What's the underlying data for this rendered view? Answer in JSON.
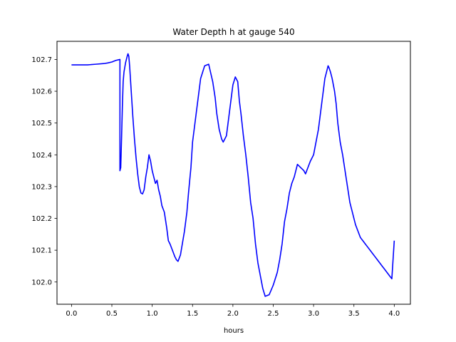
{
  "chart_data": {
    "type": "line",
    "title": "Water Depth h at gauge 540",
    "xlabel": "hours",
    "ylabel": "",
    "xlim": [
      -0.18,
      4.2
    ],
    "ylim": [
      101.93,
      102.757
    ],
    "grid": false,
    "x_ticks": [
      0.0,
      0.5,
      1.0,
      1.5,
      2.0,
      2.5,
      3.0,
      3.5,
      4.0
    ],
    "x_tick_labels": [
      "0.0",
      "0.5",
      "1.0",
      "1.5",
      "2.0",
      "2.5",
      "3.0",
      "3.5",
      "4.0"
    ],
    "y_ticks": [
      102.0,
      102.1,
      102.2,
      102.3,
      102.4,
      102.5,
      102.6,
      102.7
    ],
    "y_tick_labels": [
      "102.0",
      "102.1",
      "102.2",
      "102.3",
      "102.4",
      "102.5",
      "102.6",
      "102.7"
    ],
    "series": [
      {
        "color": "#0000ff",
        "x": [
          0.0,
          0.1,
          0.2,
          0.3,
          0.4,
          0.45,
          0.5,
          0.55,
          0.6,
          0.6,
          0.61,
          0.62,
          0.63,
          0.64,
          0.65,
          0.67,
          0.69,
          0.7,
          0.71,
          0.72,
          0.74,
          0.76,
          0.78,
          0.8,
          0.82,
          0.84,
          0.86,
          0.88,
          0.9,
          0.92,
          0.94,
          0.96,
          0.98,
          1.0,
          1.02,
          1.04,
          1.06,
          1.08,
          1.1,
          1.12,
          1.15,
          1.18,
          1.2,
          1.22,
          1.25,
          1.28,
          1.3,
          1.32,
          1.35,
          1.38,
          1.4,
          1.43,
          1.45,
          1.48,
          1.5,
          1.53,
          1.56,
          1.6,
          1.65,
          1.7,
          1.75,
          1.78,
          1.8,
          1.83,
          1.86,
          1.88,
          1.9,
          1.92,
          1.95,
          1.98,
          2.0,
          2.03,
          2.06,
          2.08,
          2.1,
          2.13,
          2.16,
          2.19,
          2.22,
          2.25,
          2.28,
          2.31,
          2.34,
          2.37,
          2.4,
          2.45,
          2.5,
          2.55,
          2.58,
          2.61,
          2.64,
          2.67,
          2.7,
          2.73,
          2.76,
          2.8,
          2.84,
          2.88,
          2.9,
          2.93,
          2.96,
          3.0,
          3.03,
          3.06,
          3.08,
          3.1,
          3.12,
          3.14,
          3.16,
          3.17,
          3.18,
          3.19,
          3.21,
          3.23,
          3.26,
          3.28,
          3.3,
          3.33,
          3.36,
          3.39,
          3.42,
          3.45,
          3.48,
          3.5,
          3.52,
          3.55,
          3.58,
          3.61,
          3.64,
          3.67,
          3.7,
          3.73,
          3.76,
          3.79,
          3.82,
          3.85,
          3.88,
          3.91,
          3.94,
          3.97,
          4.0
        ],
        "y": [
          102.683,
          102.683,
          102.683,
          102.685,
          102.687,
          102.689,
          102.692,
          102.697,
          102.7,
          102.35,
          102.36,
          102.45,
          102.55,
          102.63,
          102.66,
          102.69,
          102.71,
          102.718,
          102.71,
          102.68,
          102.6,
          102.52,
          102.45,
          102.39,
          102.34,
          102.3,
          102.28,
          102.277,
          102.29,
          102.33,
          102.36,
          102.4,
          102.38,
          102.35,
          102.33,
          102.31,
          102.32,
          102.29,
          102.27,
          102.24,
          102.22,
          102.17,
          102.13,
          102.12,
          102.1,
          102.08,
          102.07,
          102.065,
          102.085,
          102.13,
          102.16,
          102.22,
          102.28,
          102.36,
          102.44,
          102.5,
          102.56,
          102.64,
          102.68,
          102.685,
          102.63,
          102.58,
          102.53,
          102.48,
          102.45,
          102.44,
          102.45,
          102.46,
          102.52,
          102.58,
          102.62,
          102.645,
          102.63,
          102.57,
          102.53,
          102.46,
          102.4,
          102.33,
          102.25,
          102.2,
          102.12,
          102.06,
          102.02,
          101.98,
          101.955,
          101.96,
          101.99,
          102.03,
          102.07,
          102.12,
          102.19,
          102.23,
          102.28,
          102.31,
          102.33,
          102.37,
          102.36,
          102.35,
          102.34,
          102.36,
          102.38,
          102.4,
          102.44,
          102.48,
          102.52,
          102.56,
          102.6,
          102.64,
          102.66,
          102.67,
          102.68,
          102.675,
          102.66,
          102.64,
          102.6,
          102.56,
          102.5,
          102.44,
          102.4,
          102.35,
          102.3,
          102.25,
          102.22,
          102.2,
          102.18,
          102.16,
          102.14,
          102.13,
          102.12,
          102.11,
          102.1,
          102.09,
          102.08,
          102.07,
          102.06,
          102.05,
          102.04,
          102.03,
          102.02,
          102.01,
          102.13
        ]
      }
    ]
  }
}
